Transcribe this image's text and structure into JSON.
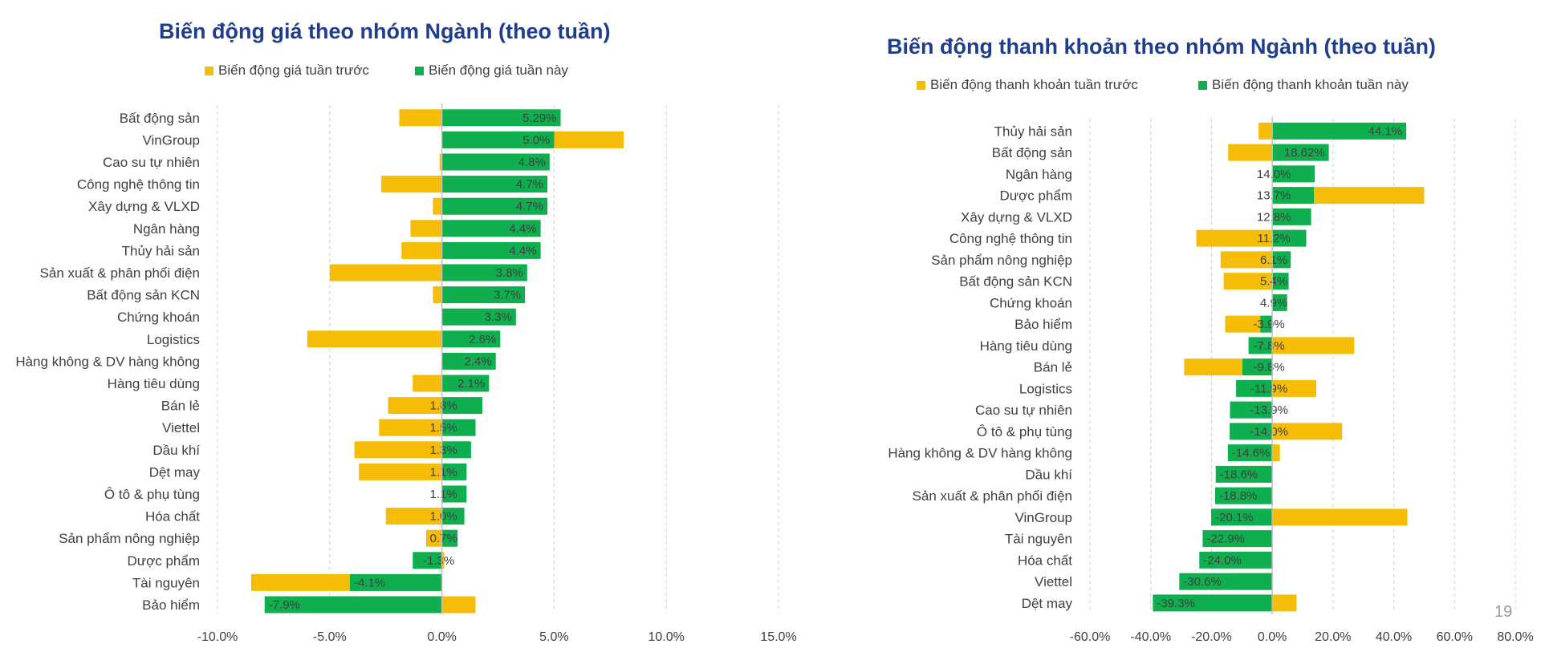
{
  "page": {
    "page_number": "19"
  },
  "colors": {
    "prev": "#f5bd07",
    "curr": "#0fae4f",
    "title": "#1f3e8c",
    "grid": "#d0d0d0",
    "zero": "#bfbfbf"
  },
  "chart_data": [
    {
      "type": "bar",
      "orientation": "horizontal",
      "title": "Biến động giá theo nhóm Ngành (theo tuần)",
      "legend": {
        "placement": "top"
      },
      "xlim": [
        -10,
        15
      ],
      "x_ticks": [
        -10,
        -5,
        0,
        5,
        10,
        15
      ],
      "x_tick_labels": [
        "-10.0%",
        "-5.0%",
        "0.0%",
        "5.0%",
        "10.0%",
        "15.0%"
      ],
      "grid": true,
      "categories": [
        "Bất động sản",
        "VinGroup",
        "Cao su tự nhiên",
        "Công nghệ thông tin",
        "Xây dựng & VLXD",
        "Ngân hàng",
        "Thủy hải sản",
        "Sản xuất & phân phối điện",
        "Bất động sản KCN",
        "Chứng khoán",
        "Logistics",
        "Hàng không & DV hàng không",
        "Hàng tiêu dùng",
        "Bán lẻ",
        "Viettel",
        "Dầu khí",
        "Dệt may",
        "Ô tô & phụ tùng",
        "Hóa chất",
        "Sản phẩm nông nghiệp",
        "Dược phẩm",
        "Tài nguyên",
        "Bảo hiểm"
      ],
      "series": [
        {
          "name": "Biến động giá tuần trước",
          "values": [
            -1.9,
            8.1,
            -0.1,
            -2.7,
            -0.4,
            -1.4,
            -1.8,
            -5.0,
            -0.4,
            0.0,
            -6.0,
            0.9,
            -1.3,
            -2.4,
            -2.8,
            -3.9,
            -3.7,
            0.0,
            -2.5,
            -0.7,
            0.1,
            -8.5,
            1.5
          ]
        },
        {
          "name": "Biến động giá tuần này",
          "values": [
            5.29,
            5.0,
            4.8,
            4.7,
            4.7,
            4.4,
            4.4,
            3.8,
            3.7,
            3.3,
            2.6,
            2.4,
            2.1,
            1.8,
            1.5,
            1.3,
            1.1,
            1.1,
            1.0,
            0.7,
            -1.3,
            -4.1,
            -7.9
          ]
        }
      ],
      "data_labels": [
        "5.29%",
        "5.0%",
        "4.8%",
        "4.7%",
        "4.7%",
        "4.4%",
        "4.4%",
        "3.8%",
        "3.7%",
        "3.3%",
        "2.6%",
        "2.4%",
        "2.1%",
        "1.8%",
        "1.5%",
        "1.3%",
        "1.1%",
        "1.1%",
        "1.0%",
        "0.7%",
        "-1.3%",
        "-4.1%",
        "-7.9%"
      ]
    },
    {
      "type": "bar",
      "orientation": "horizontal",
      "title": "Biến động thanh khoản theo nhóm Ngành (theo tuần)",
      "legend": {
        "placement": "top"
      },
      "xlim": [
        -60,
        80
      ],
      "x_ticks": [
        -60,
        -40,
        -20,
        0,
        20,
        40,
        60,
        80
      ],
      "x_tick_labels": [
        "-60.0%",
        "-40.0%",
        "-20.0%",
        "0.0%",
        "20.0%",
        "40.0%",
        "60.0%",
        "80.0%"
      ],
      "grid": true,
      "categories": [
        "Thủy hải sản",
        "Bất động sản",
        "Ngân hàng",
        "Dược phẩm",
        "Xây dựng & VLXD",
        "Công nghệ thông tin",
        "Sản phẩm nông nghiệp",
        "Bất động sản KCN",
        "Chứng khoán",
        "Bảo hiểm",
        "Hàng tiêu dùng",
        "Bán lẻ",
        "Logistics",
        "Cao su tự nhiên",
        "Ô tô & phụ tùng",
        "Hàng không & DV hàng không",
        "Dầu khí",
        "Sản xuất & phân phối điện",
        "VinGroup",
        "Tài nguyên",
        "Hóa chất",
        "Viettel",
        "Dệt may"
      ],
      "series": [
        {
          "name": "Biến động thanh khoản tuần trước",
          "values": [
            -4.5,
            -14.5,
            0.5,
            50.0,
            4.5,
            -25.0,
            -17.0,
            -16.0,
            3.0,
            -15.5,
            27.0,
            -29.0,
            14.5,
            -6.0,
            23.0,
            2.5,
            -10.5,
            -1.5,
            44.5,
            -16.5,
            -18.0,
            -12.5,
            8.0
          ]
        },
        {
          "name": "Biến động thanh khoản tuần này",
          "values": [
            44.1,
            18.62,
            14.0,
            13.7,
            12.8,
            11.2,
            6.1,
            5.4,
            4.9,
            -3.9,
            -7.8,
            -9.8,
            -11.9,
            -13.9,
            -14.0,
            -14.6,
            -18.6,
            -18.8,
            -20.1,
            -22.9,
            -24.0,
            -30.6,
            -39.3
          ]
        }
      ],
      "data_labels": [
        "44.1%",
        "18.62%",
        "14.0%",
        "13.7%",
        "12.8%",
        "11.2%",
        "6.1%",
        "5.4%",
        "4.9%",
        "-3.9%",
        "-7.8%",
        "-9.8%",
        "-11.9%",
        "-13.9%",
        "-14.0%",
        "-14.6%",
        "-18.6%",
        "-18.8%",
        "-20.1%",
        "-22.9%",
        "-24.0%",
        "-30.6%",
        "-39.3%"
      ]
    }
  ]
}
